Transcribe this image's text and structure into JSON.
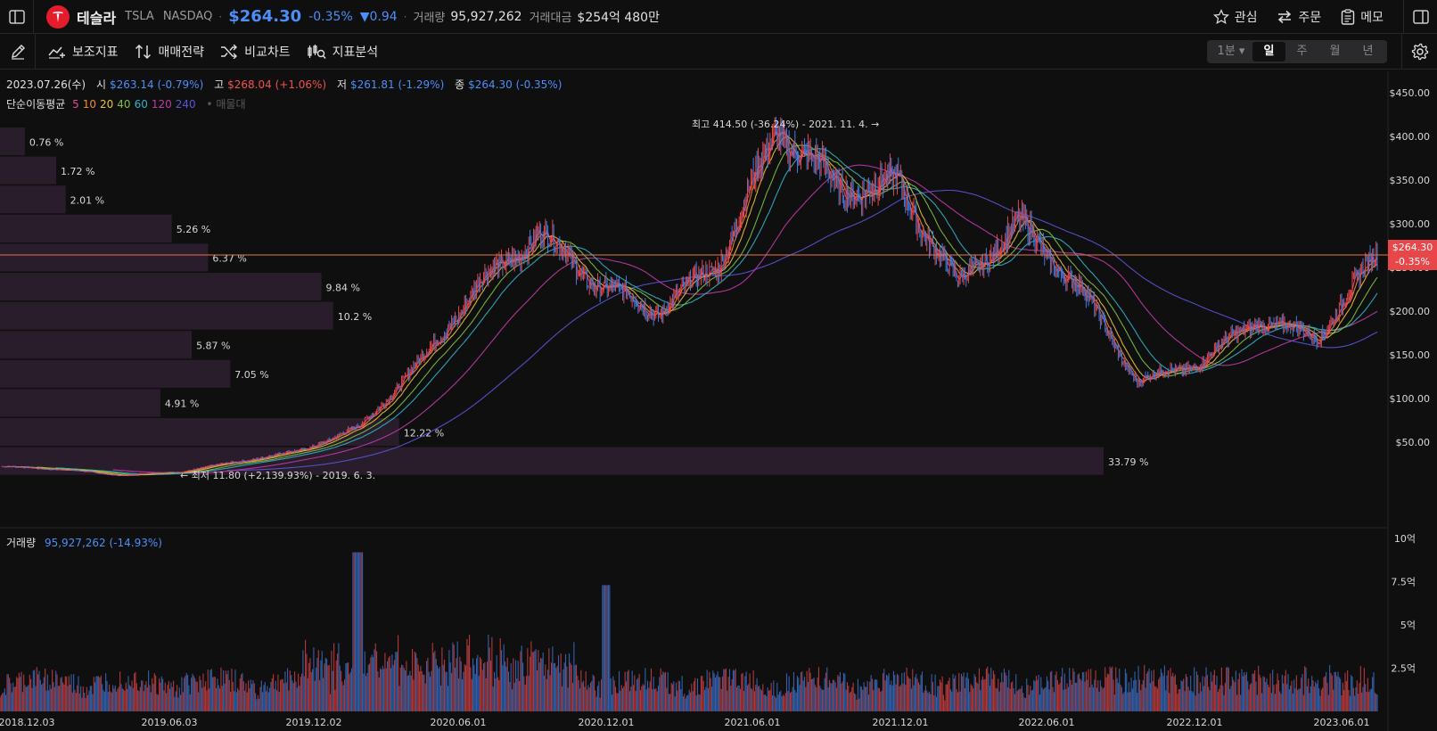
{
  "header": {
    "name": "테슬라",
    "symbol": "TSLA",
    "exchange": "NASDAQ",
    "price": "$264.30",
    "change_pct": "-0.35%",
    "change_abs": "▼0.94",
    "volume_label": "거래량",
    "volume_value": "95,927,262",
    "amount_label": "거래대금",
    "amount_value": "$254억 480만",
    "actions": [
      "관심",
      "주문",
      "메모"
    ]
  },
  "toolbar": {
    "buttons": [
      "보조지표",
      "매매전략",
      "비교차트",
      "지표분석"
    ],
    "periods": [
      "1분",
      "일",
      "주",
      "월",
      "년"
    ],
    "active_period": "일"
  },
  "ohlc": {
    "date": "2023.07.26(수)",
    "open_label": "시",
    "open": "$263.14 (-0.79%)",
    "high_label": "고",
    "high": "$268.04 (+1.06%)",
    "low_label": "저",
    "low": "$261.81 (-1.29%)",
    "close_label": "종",
    "close": "$264.30 (-0.35%)"
  },
  "ma": {
    "label": "단순이동평균",
    "periods": [
      {
        "v": "5",
        "color": "#e04d8c"
      },
      {
        "v": "10",
        "color": "#f2892e"
      },
      {
        "v": "20",
        "color": "#e8c23a"
      },
      {
        "v": "40",
        "color": "#7ec142"
      },
      {
        "v": "60",
        "color": "#2fb3c6"
      },
      {
        "v": "120",
        "color": "#c23aa8"
      },
      {
        "v": "240",
        "color": "#5a55d8"
      }
    ],
    "suffix": "• 매물대"
  },
  "annotations": {
    "high": "최고 414.50 (-36.24%) - 2021. 11. 4.",
    "low": "최저 11.80 (+2,139.93%) - 2019. 6. 3."
  },
  "volume_profile": [
    {
      "pct": "0.76 %",
      "value": 0.76
    },
    {
      "pct": "1.72 %",
      "value": 1.72
    },
    {
      "pct": "2.01 %",
      "value": 2.01
    },
    {
      "pct": "5.26 %",
      "value": 5.26
    },
    {
      "pct": "6.37 %",
      "value": 6.37
    },
    {
      "pct": "9.84 %",
      "value": 9.84
    },
    {
      "pct": "10.2 %",
      "value": 10.2
    },
    {
      "pct": "5.87 %",
      "value": 5.87
    },
    {
      "pct": "7.05 %",
      "value": 7.05
    },
    {
      "pct": "4.91 %",
      "value": 4.91
    },
    {
      "pct": "12.22 %",
      "value": 12.22
    },
    {
      "pct": "33.79 %",
      "value": 33.79
    }
  ],
  "price_axis": [
    {
      "label": "$450.00",
      "v": 450
    },
    {
      "label": "$400.00",
      "v": 400
    },
    {
      "label": "$350.00",
      "v": 350
    },
    {
      "label": "$300.00",
      "v": 300
    },
    {
      "label": "$250.00",
      "v": 250
    },
    {
      "label": "$200.00",
      "v": 200
    },
    {
      "label": "$150.00",
      "v": 150
    },
    {
      "label": "$100.00",
      "v": 100
    },
    {
      "label": "$50.00",
      "v": 50
    }
  ],
  "current_price_badge": {
    "price": "$264.30",
    "pct": "-0.35%",
    "v": 264.3
  },
  "volume_panel": {
    "label": "거래량",
    "value": "95,927,262 (-14.93%)",
    "axis": [
      {
        "label": "10억",
        "v": 10
      },
      {
        "label": "7.5억",
        "v": 7.5
      },
      {
        "label": "5억",
        "v": 5
      },
      {
        "label": "2.5억",
        "v": 2.5
      }
    ]
  },
  "date_axis": [
    "2018.12.03",
    "2019.06.03",
    "2019.12.02",
    "2020.06.01",
    "2020.12.01",
    "2021.06.01",
    "2021.12.01",
    "2022.06.01",
    "2022.12.01",
    "2023.06.01"
  ],
  "chart_data": {
    "type": "line",
    "title": "",
    "x": [
      "2018.12",
      "2019.03",
      "2019.06",
      "2019.09",
      "2019.12",
      "2020.03",
      "2020.06",
      "2020.09",
      "2020.12",
      "2021.01",
      "2021.03",
      "2021.06",
      "2021.09",
      "2021.11",
      "2022.01",
      "2022.04",
      "2022.06",
      "2022.08",
      "2022.10",
      "2022.12",
      "2023.01",
      "2023.03",
      "2023.05",
      "2023.07"
    ],
    "series": [
      {
        "values": [
          22,
          19,
          12,
          16,
          28,
          40,
          67,
          140,
          230,
          290,
          230,
          200,
          255,
          410,
          340,
          345,
          230,
          300,
          230,
          120,
          140,
          190,
          170,
          264
        ]
      }
    ],
    "ylim": [
      0,
      470
    ],
    "volume_ylim": [
      0,
      10
    ]
  }
}
